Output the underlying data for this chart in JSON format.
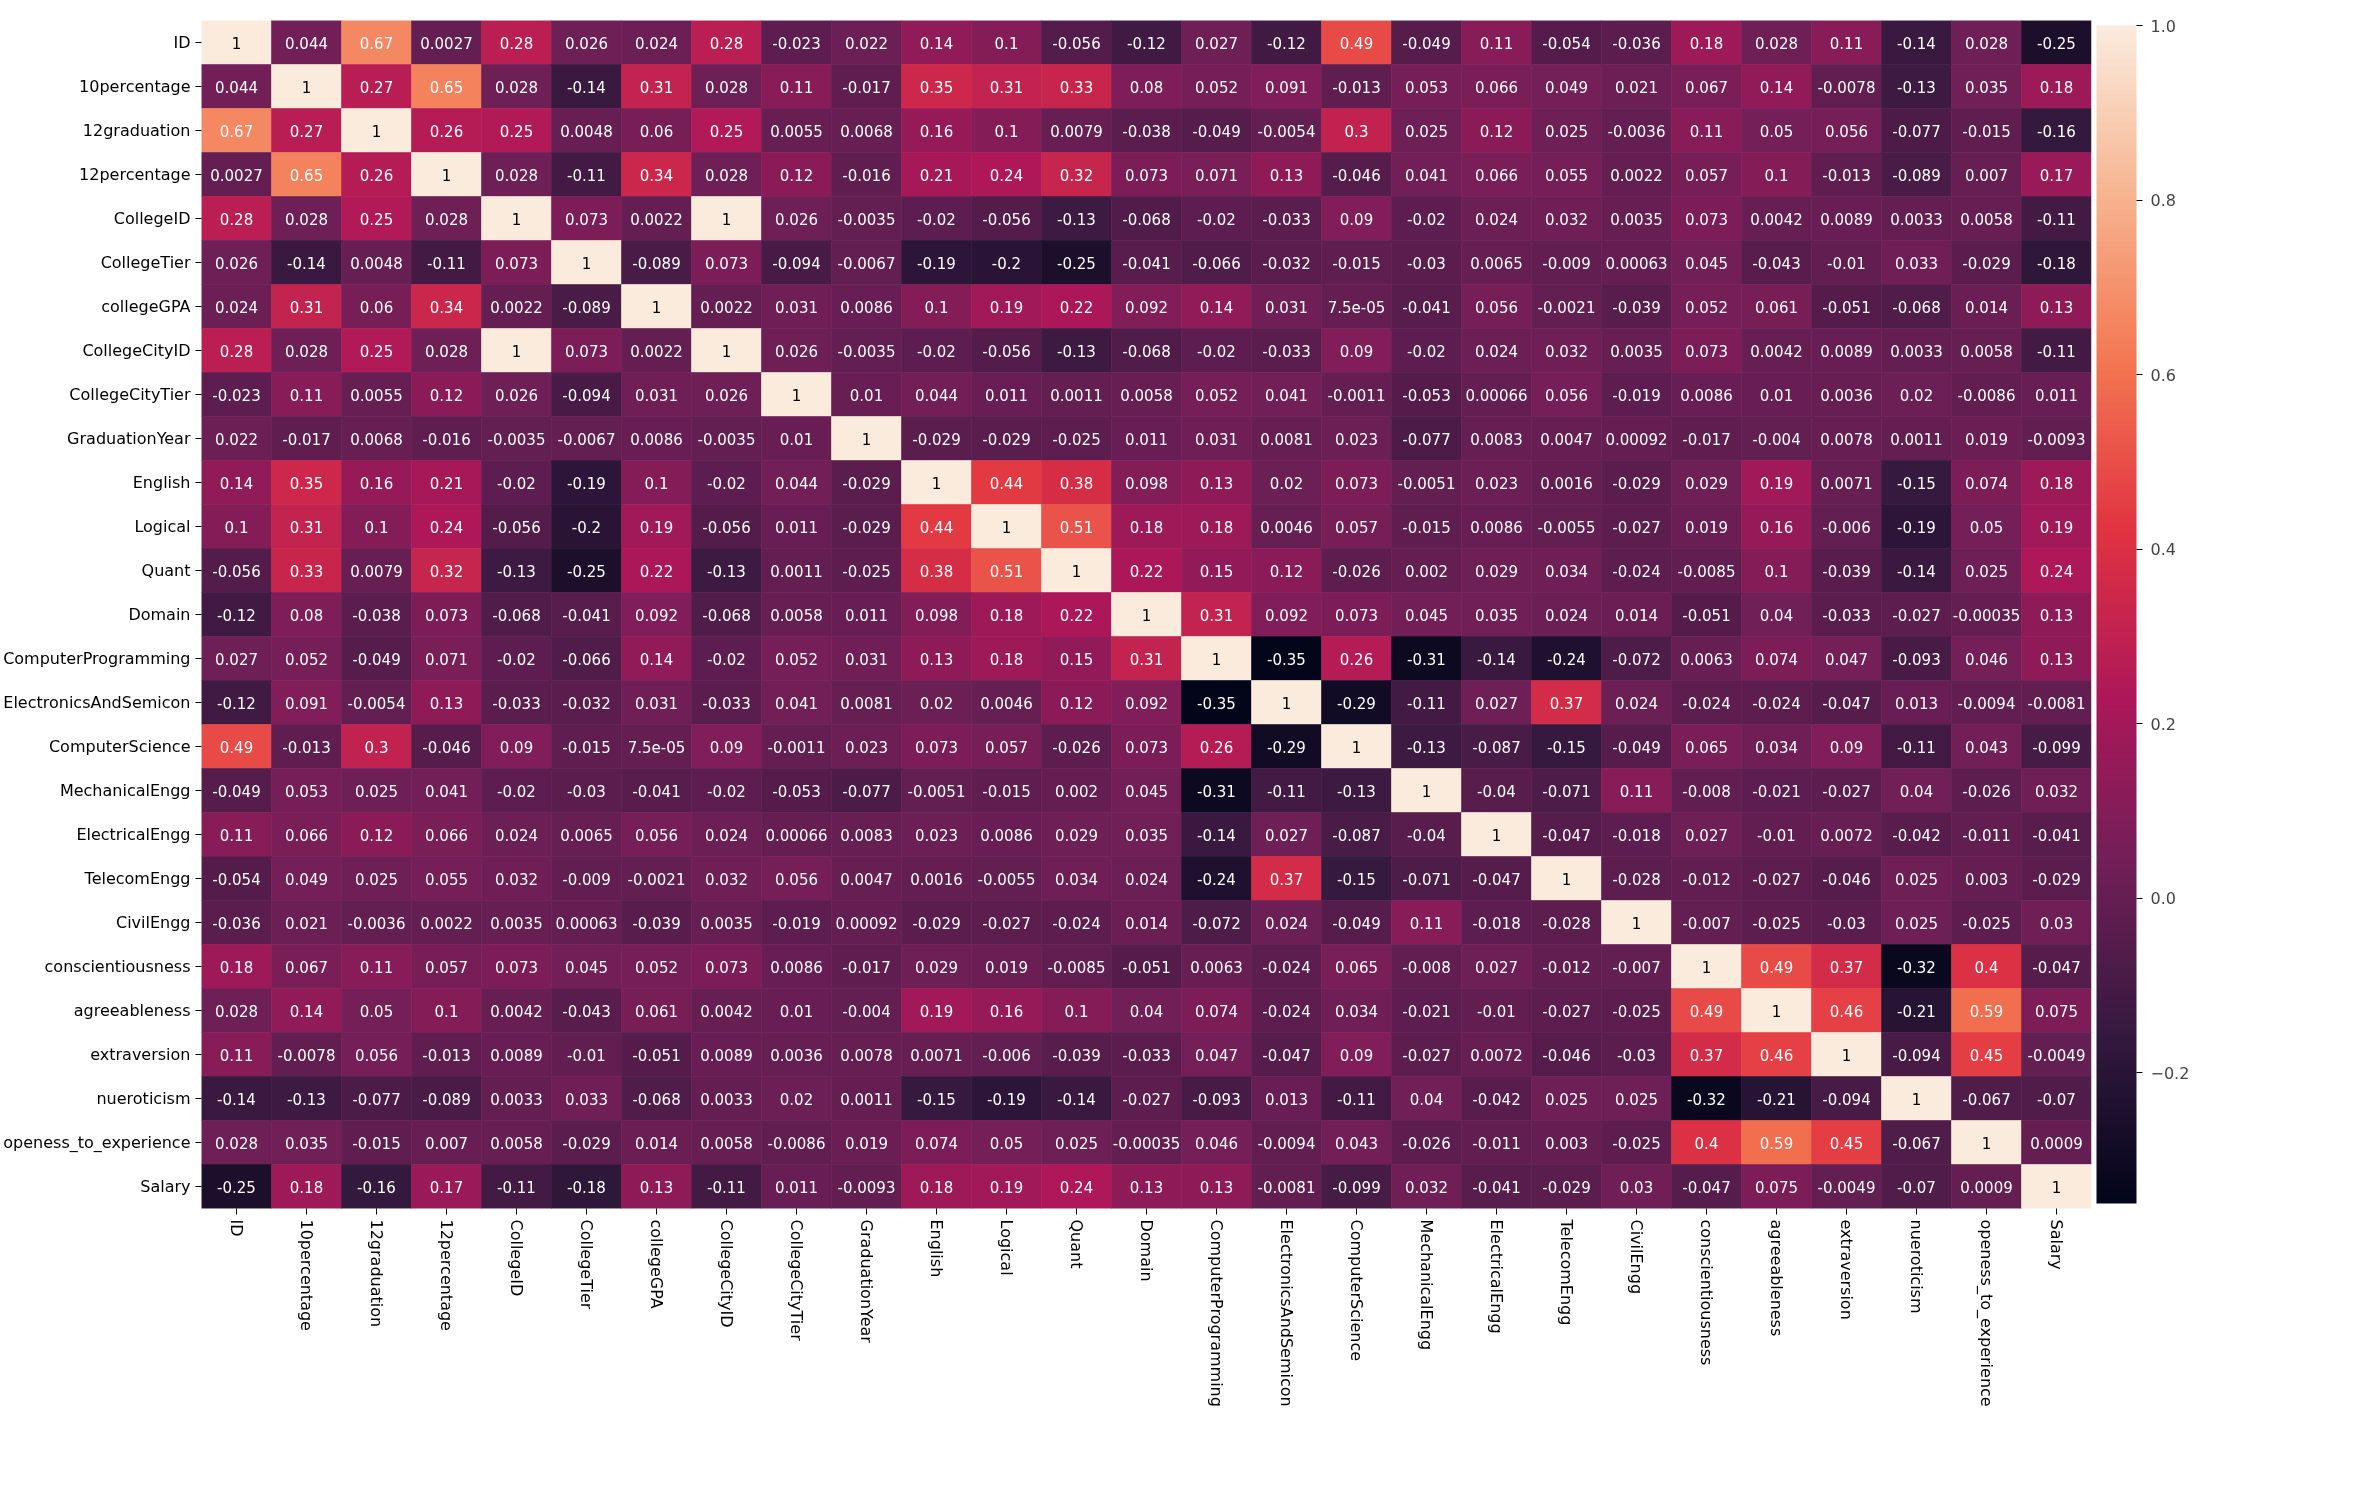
{
  "chart_data": {
    "type": "heatmap",
    "categories": [
      "ID",
      "10percentage",
      "12graduation",
      "12percentage",
      "CollegeID",
      "CollegeTier",
      "collegeGPA",
      "CollegeCityID",
      "CollegeCityTier",
      "GraduationYear",
      "English",
      "Logical",
      "Quant",
      "Domain",
      "ComputerProgramming",
      "ElectronicsAndSemicon",
      "ComputerScience",
      "MechanicalEngg",
      "ElectricalEngg",
      "TelecomEngg",
      "CivilEngg",
      "conscientiousness",
      "agreeableness",
      "extraversion",
      "nueroticism",
      "openess_to_experience",
      "Salary"
    ],
    "y_categories": [
      "ID",
      "10percentage",
      "12graduation",
      "12percentage",
      "CollegeID",
      "CollegeTier",
      "collegeGPA",
      "CollegeCityID",
      "CollegeCityTier",
      "GraduationYear",
      "English",
      "Logical",
      "Quant",
      "Domain",
      "ComputerProgramming",
      "ElectronicsAndSemicon",
      "ComputerScience",
      "MechanicalEngg",
      "ElectricalEngg",
      "TelecomEngg",
      "CivilEngg",
      "conscientiousness",
      "agreeableness",
      "extraversion",
      "nueroticism",
      "openess_to_experience",
      "Salary"
    ],
    "cells": [
      [
        1,
        0.044,
        0.67,
        0.0027,
        0.28,
        0.026,
        0.024,
        0.28,
        -0.023,
        0.022,
        0.14,
        0.1,
        -0.056,
        -0.12,
        0.027,
        -0.12,
        0.49,
        -0.049,
        0.11,
        -0.054,
        -0.036,
        0.18,
        0.028,
        0.11,
        -0.14,
        0.028,
        -0.25
      ],
      [
        0.044,
        1,
        0.27,
        0.65,
        0.028,
        -0.14,
        0.31,
        0.028,
        0.11,
        -0.017,
        0.35,
        0.31,
        0.33,
        0.08,
        0.052,
        0.091,
        -0.013,
        0.053,
        0.066,
        0.049,
        0.021,
        0.067,
        0.14,
        -0.0078,
        -0.13,
        0.035,
        0.18
      ],
      [
        0.67,
        0.27,
        1,
        0.26,
        0.25,
        0.0048,
        0.06,
        0.25,
        0.0055,
        0.0068,
        0.16,
        0.1,
        0.0079,
        -0.038,
        -0.049,
        -0.0054,
        0.3,
        0.025,
        0.12,
        0.025,
        -0.0036,
        0.11,
        0.05,
        0.056,
        -0.077,
        -0.015,
        -0.16
      ],
      [
        0.0027,
        0.65,
        0.26,
        1,
        0.028,
        -0.11,
        0.34,
        0.028,
        0.12,
        -0.016,
        0.21,
        0.24,
        0.32,
        0.073,
        0.071,
        0.13,
        -0.046,
        0.041,
        0.066,
        0.055,
        0.0022,
        0.057,
        0.1,
        -0.013,
        -0.089,
        0.007,
        0.17
      ],
      [
        0.28,
        0.028,
        0.25,
        0.028,
        1,
        0.073,
        0.0022,
        1,
        0.026,
        -0.0035,
        -0.02,
        -0.056,
        -0.13,
        -0.068,
        -0.02,
        -0.033,
        0.09,
        -0.02,
        0.024,
        0.032,
        0.0035,
        0.073,
        0.0042,
        0.0089,
        0.0033,
        0.0058,
        -0.11
      ],
      [
        0.026,
        -0.14,
        0.0048,
        -0.11,
        0.073,
        1,
        -0.089,
        0.073,
        -0.094,
        -0.0067,
        -0.19,
        -0.2,
        -0.25,
        -0.041,
        -0.066,
        -0.032,
        -0.015,
        -0.03,
        0.0065,
        -0.009,
        0.00063,
        0.045,
        -0.043,
        -0.01,
        0.033,
        -0.029,
        -0.18
      ],
      [
        0.024,
        0.31,
        0.06,
        0.34,
        0.0022,
        -0.089,
        1,
        0.0022,
        0.031,
        0.0086,
        0.1,
        0.19,
        0.22,
        0.092,
        0.14,
        0.031,
        7.5e-05,
        -0.041,
        0.056,
        -0.0021,
        -0.039,
        0.052,
        0.061,
        -0.051,
        -0.068,
        0.014,
        0.13
      ],
      [
        0.28,
        0.028,
        0.25,
        0.028,
        1,
        0.073,
        0.0022,
        1,
        0.026,
        -0.0035,
        -0.02,
        -0.056,
        -0.13,
        -0.068,
        -0.02,
        -0.033,
        0.09,
        -0.02,
        0.024,
        0.032,
        0.0035,
        0.073,
        0.0042,
        0.0089,
        0.0033,
        0.0058,
        -0.11
      ],
      [
        -0.023,
        0.11,
        0.0055,
        0.12,
        0.026,
        -0.094,
        0.031,
        0.026,
        1,
        0.01,
        0.044,
        0.011,
        0.0011,
        0.0058,
        0.052,
        0.041,
        -0.0011,
        -0.053,
        0.00066,
        0.056,
        -0.019,
        0.0086,
        0.01,
        0.0036,
        0.02,
        -0.0086,
        0.011
      ],
      [
        0.022,
        -0.017,
        0.0068,
        -0.016,
        -0.0035,
        -0.0067,
        0.0086,
        -0.0035,
        0.01,
        1,
        -0.029,
        -0.029,
        -0.025,
        0.011,
        0.031,
        0.0081,
        0.023,
        -0.077,
        0.0083,
        0.0047,
        0.00092,
        -0.017,
        -0.004,
        0.0078,
        0.0011,
        0.019,
        -0.0093
      ],
      [
        0.14,
        0.35,
        0.16,
        0.21,
        -0.02,
        -0.19,
        0.1,
        -0.02,
        0.044,
        -0.029,
        1,
        0.44,
        0.38,
        0.098,
        0.13,
        0.02,
        0.073,
        -0.0051,
        0.023,
        0.0016,
        -0.029,
        0.029,
        0.19,
        0.0071,
        -0.15,
        0.074,
        0.18
      ],
      [
        0.1,
        0.31,
        0.1,
        0.24,
        -0.056,
        -0.2,
        0.19,
        -0.056,
        0.011,
        -0.029,
        0.44,
        1,
        0.51,
        0.18,
        0.18,
        0.0046,
        0.057,
        -0.015,
        0.0086,
        -0.0055,
        -0.027,
        0.019,
        0.16,
        -0.006,
        -0.19,
        0.05,
        0.19
      ],
      [
        -0.056,
        0.33,
        0.0079,
        0.32,
        -0.13,
        -0.25,
        0.22,
        -0.13,
        0.0011,
        -0.025,
        0.38,
        0.51,
        1,
        0.22,
        0.15,
        0.12,
        -0.026,
        0.002,
        0.029,
        0.034,
        -0.024,
        -0.0085,
        0.1,
        -0.039,
        -0.14,
        0.025,
        0.24
      ],
      [
        -0.12,
        0.08,
        -0.038,
        0.073,
        -0.068,
        -0.041,
        0.092,
        -0.068,
        0.0058,
        0.011,
        0.098,
        0.18,
        0.22,
        1,
        0.31,
        0.092,
        0.073,
        0.045,
        0.035,
        0.024,
        0.014,
        -0.051,
        0.04,
        -0.033,
        -0.027,
        -0.00035,
        0.13
      ],
      [
        0.027,
        0.052,
        -0.049,
        0.071,
        -0.02,
        -0.066,
        0.14,
        -0.02,
        0.052,
        0.031,
        0.13,
        0.18,
        0.15,
        0.31,
        1,
        -0.35,
        0.26,
        -0.31,
        -0.14,
        -0.24,
        -0.072,
        0.0063,
        0.074,
        0.047,
        -0.093,
        0.046,
        0.13
      ],
      [
        -0.12,
        0.091,
        -0.0054,
        0.13,
        -0.033,
        -0.032,
        0.031,
        -0.033,
        0.041,
        0.0081,
        0.02,
        0.0046,
        0.12,
        0.092,
        -0.35,
        1,
        -0.29,
        -0.11,
        0.027,
        0.37,
        0.024,
        -0.024,
        -0.024,
        -0.047,
        0.013,
        -0.0094,
        -0.0081
      ],
      [
        0.49,
        -0.013,
        0.3,
        -0.046,
        0.09,
        -0.015,
        7.5e-05,
        0.09,
        -0.0011,
        0.023,
        0.073,
        0.057,
        -0.026,
        0.073,
        0.26,
        -0.29,
        1,
        -0.13,
        -0.087,
        -0.15,
        -0.049,
        0.065,
        0.034,
        0.09,
        -0.11,
        0.043,
        -0.099
      ],
      [
        -0.049,
        0.053,
        0.025,
        0.041,
        -0.02,
        -0.03,
        -0.041,
        -0.02,
        -0.053,
        -0.077,
        -0.0051,
        -0.015,
        0.002,
        0.045,
        -0.31,
        -0.11,
        -0.13,
        1,
        -0.04,
        -0.071,
        0.11,
        -0.008,
        -0.021,
        -0.027,
        0.04,
        -0.026,
        0.032
      ],
      [
        0.11,
        0.066,
        0.12,
        0.066,
        0.024,
        0.0065,
        0.056,
        0.024,
        0.00066,
        0.0083,
        0.023,
        0.0086,
        0.029,
        0.035,
        -0.14,
        0.027,
        -0.087,
        -0.04,
        1,
        -0.047,
        -0.018,
        0.027,
        -0.01,
        0.0072,
        -0.042,
        -0.011,
        -0.041
      ],
      [
        -0.054,
        0.049,
        0.025,
        0.055,
        0.032,
        -0.009,
        -0.0021,
        0.032,
        0.056,
        0.0047,
        0.0016,
        -0.0055,
        0.034,
        0.024,
        -0.24,
        0.37,
        -0.15,
        -0.071,
        -0.047,
        1,
        -0.028,
        -0.012,
        -0.027,
        -0.046,
        0.025,
        0.003,
        -0.029
      ],
      [
        -0.036,
        0.021,
        -0.0036,
        0.0022,
        0.0035,
        0.00063,
        -0.039,
        0.0035,
        -0.019,
        0.00092,
        -0.029,
        -0.027,
        -0.024,
        0.014,
        -0.072,
        0.024,
        -0.049,
        0.11,
        -0.018,
        -0.028,
        1,
        -0.007,
        -0.025,
        -0.03,
        0.025,
        -0.025,
        0.03
      ],
      [
        0.18,
        0.067,
        0.11,
        0.057,
        0.073,
        0.045,
        0.052,
        0.073,
        0.0086,
        -0.017,
        0.029,
        0.019,
        -0.0085,
        -0.051,
        0.0063,
        -0.024,
        0.065,
        -0.008,
        0.027,
        -0.012,
        -0.007,
        1,
        0.49,
        0.37,
        -0.32,
        0.4,
        -0.047
      ],
      [
        0.028,
        0.14,
        0.05,
        0.1,
        0.0042,
        -0.043,
        0.061,
        0.0042,
        0.01,
        -0.004,
        0.19,
        0.16,
        0.1,
        0.04,
        0.074,
        -0.024,
        0.034,
        -0.021,
        -0.01,
        -0.027,
        -0.025,
        0.49,
        1,
        0.46,
        -0.21,
        0.59,
        0.075
      ],
      [
        0.11,
        -0.0078,
        0.056,
        -0.013,
        0.0089,
        -0.01,
        -0.051,
        0.0089,
        0.0036,
        0.0078,
        0.0071,
        -0.006,
        -0.039,
        -0.033,
        0.047,
        -0.047,
        0.09,
        -0.027,
        0.0072,
        -0.046,
        -0.03,
        0.37,
        0.46,
        1,
        -0.094,
        0.45,
        -0.0049
      ],
      [
        -0.14,
        -0.13,
        -0.077,
        -0.089,
        0.0033,
        0.033,
        -0.068,
        0.0033,
        0.02,
        0.0011,
        -0.15,
        -0.19,
        -0.14,
        -0.027,
        -0.093,
        0.013,
        -0.11,
        0.04,
        -0.042,
        0.025,
        0.025,
        -0.32,
        -0.21,
        -0.094,
        1,
        -0.067,
        -0.07
      ],
      [
        0.028,
        0.035,
        -0.015,
        0.007,
        0.0058,
        -0.029,
        0.014,
        0.0058,
        -0.0086,
        0.019,
        0.074,
        0.05,
        0.025,
        -0.00035,
        0.046,
        -0.0094,
        0.043,
        -0.026,
        -0.011,
        0.003,
        -0.025,
        0.4,
        0.59,
        0.45,
        -0.067,
        1,
        0.0009
      ],
      [
        -0.25,
        0.18,
        -0.16,
        0.17,
        -0.11,
        -0.18,
        0.13,
        -0.11,
        0.011,
        -0.0093,
        0.18,
        0.19,
        0.24,
        0.13,
        0.13,
        -0.0081,
        -0.099,
        0.032,
        -0.041,
        -0.029,
        0.03,
        -0.047,
        0.075,
        -0.0049,
        -0.07,
        0.0009,
        1
      ]
    ],
    "clim": [
      -0.35,
      1
    ],
    "cticks": [
      {
        "value": -0.2,
        "label": "−0.2"
      },
      {
        "value": 0,
        "label": "0.0"
      },
      0.2,
      0.4,
      0.6,
      0.8,
      {
        "value": 1,
        "label": "1.0"
      }
    ],
    "data_labels": true
  }
}
